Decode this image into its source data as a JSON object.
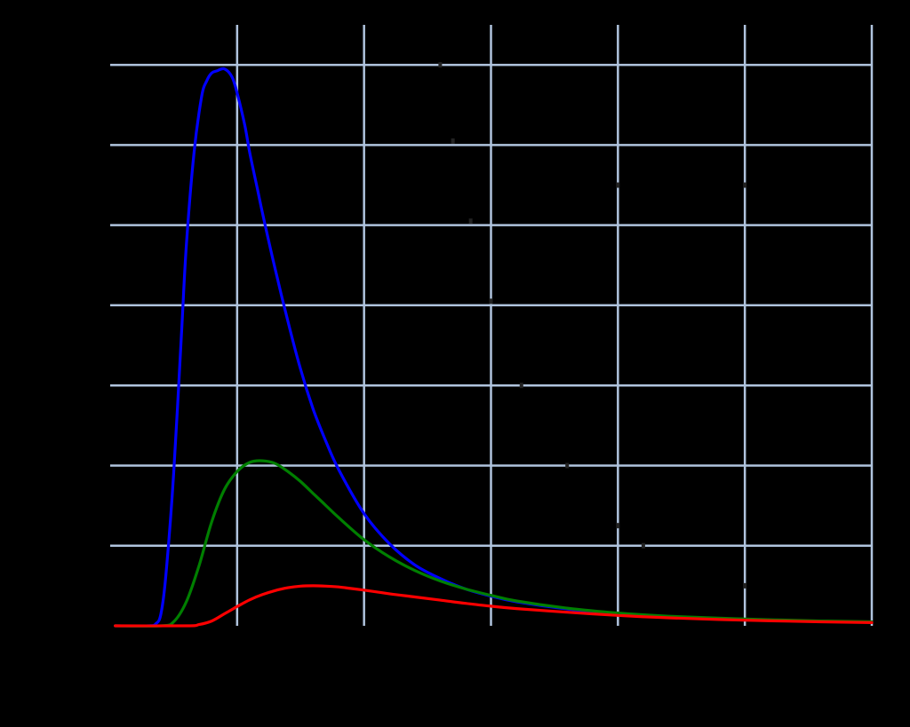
{
  "chart_data": {
    "type": "line",
    "title": "",
    "xlabel": "",
    "ylabel": "",
    "xlim": [
      0,
      3
    ],
    "ylim": [
      0,
      15
    ],
    "x_gridlines": [
      0.5,
      1.0,
      1.5,
      2.0,
      2.5,
      3.0
    ],
    "y_gridlines": [
      2,
      4,
      6,
      8,
      10,
      12,
      14
    ],
    "grid": true,
    "background": "#000000",
    "grid_color": "#b0c4de",
    "series": [
      {
        "color": "#0000ff",
        "x": [
          0.02,
          0.15,
          0.18,
          0.2,
          0.22,
          0.25,
          0.28,
          0.3,
          0.33,
          0.36,
          0.38,
          0.4,
          0.42,
          0.45,
          0.48,
          0.5,
          0.53,
          0.55,
          0.58,
          0.6,
          0.65,
          0.7,
          0.75,
          0.8,
          0.85,
          0.9,
          1.0,
          1.1,
          1.2,
          1.3,
          1.4,
          1.5,
          1.6,
          1.8,
          2.0,
          2.2,
          2.5,
          2.8,
          3.0
        ],
        "y": [
          0.0,
          0.0,
          0.05,
          0.3,
          1.3,
          3.8,
          7.2,
          9.5,
          11.8,
          13.2,
          13.6,
          13.8,
          13.85,
          13.9,
          13.7,
          13.3,
          12.5,
          11.8,
          10.9,
          10.3,
          8.9,
          7.6,
          6.4,
          5.4,
          4.6,
          3.9,
          2.8,
          2.05,
          1.52,
          1.18,
          0.92,
          0.74,
          0.6,
          0.42,
          0.3,
          0.22,
          0.16,
          0.11,
          0.09
        ]
      },
      {
        "color": "#007f00",
        "x": [
          0.02,
          0.2,
          0.25,
          0.3,
          0.35,
          0.4,
          0.45,
          0.5,
          0.55,
          0.6,
          0.65,
          0.7,
          0.75,
          0.8,
          0.85,
          0.9,
          1.0,
          1.1,
          1.2,
          1.3,
          1.4,
          1.5,
          1.6,
          1.8,
          2.0,
          2.2,
          2.5,
          2.8,
          3.0
        ],
        "y": [
          0.0,
          0.0,
          0.1,
          0.6,
          1.5,
          2.6,
          3.4,
          3.85,
          4.08,
          4.12,
          4.05,
          3.85,
          3.6,
          3.3,
          3.0,
          2.7,
          2.15,
          1.72,
          1.38,
          1.12,
          0.92,
          0.76,
          0.62,
          0.44,
          0.32,
          0.24,
          0.17,
          0.12,
          0.1
        ]
      },
      {
        "color": "#ff0000",
        "x": [
          0.02,
          0.3,
          0.35,
          0.4,
          0.45,
          0.5,
          0.55,
          0.6,
          0.65,
          0.7,
          0.75,
          0.8,
          0.85,
          0.9,
          0.95,
          1.0,
          1.1,
          1.2,
          1.3,
          1.4,
          1.5,
          1.6,
          1.8,
          2.0,
          2.2,
          2.5,
          2.8,
          3.0
        ],
        "y": [
          0.0,
          0.0,
          0.03,
          0.12,
          0.3,
          0.48,
          0.65,
          0.78,
          0.88,
          0.95,
          0.99,
          1.0,
          0.99,
          0.97,
          0.93,
          0.89,
          0.8,
          0.72,
          0.64,
          0.56,
          0.49,
          0.43,
          0.34,
          0.26,
          0.2,
          0.14,
          0.1,
          0.08
        ]
      }
    ],
    "dark_markers": [
      {
        "x": 1.3,
        "y": 14.0
      },
      {
        "x": 1.35,
        "y": 12.1
      },
      {
        "x": 1.42,
        "y": 10.1
      },
      {
        "x": 1.5,
        "y": 8.1
      },
      {
        "x": 1.62,
        "y": 6.0
      },
      {
        "x": 1.8,
        "y": 4.0
      },
      {
        "x": 2.0,
        "y": 2.5
      },
      {
        "x": 2.1,
        "y": 2.0
      },
      {
        "x": 2.0,
        "y": 11.0
      },
      {
        "x": 2.5,
        "y": 11.0
      },
      {
        "x": 2.5,
        "y": 1.0
      }
    ]
  }
}
